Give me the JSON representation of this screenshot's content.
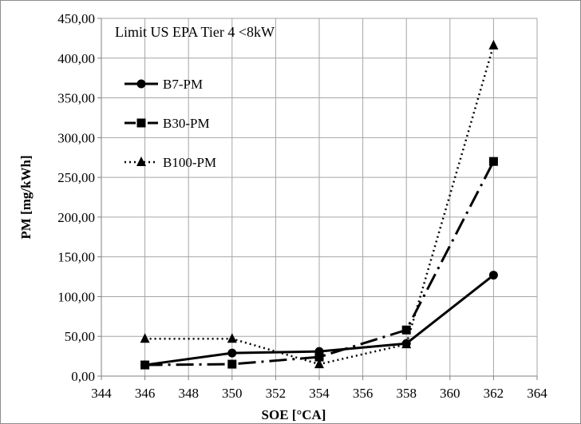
{
  "chart_data": {
    "type": "line",
    "annotation": "Limit US EPA Tier 4 <8kW",
    "xlabel": "SOE [°CA]",
    "ylabel": "PM [mg/kWh]",
    "xlim": [
      344,
      364
    ],
    "ylim": [
      0,
      450
    ],
    "x_ticks": [
      "344",
      "346",
      "348",
      "350",
      "352",
      "354",
      "356",
      "358",
      "360",
      "362",
      "364"
    ],
    "y_ticks": [
      "0,00",
      "50,00",
      "100,00",
      "150,00",
      "200,00",
      "250,00",
      "300,00",
      "350,00",
      "400,00",
      "450,00"
    ],
    "grid": true,
    "legend_position": "top-left",
    "x": [
      346,
      350,
      354,
      358,
      362
    ],
    "series": [
      {
        "name": "B7-PM",
        "marker": "circle",
        "line_style": "solid",
        "values": [
          14,
          29,
          31,
          41,
          127
        ]
      },
      {
        "name": "B30-PM",
        "marker": "square",
        "line_style": "dash-dot",
        "values": [
          14,
          15,
          24,
          58,
          270
        ]
      },
      {
        "name": "B100-PM",
        "marker": "triangle",
        "line_style": "dotted",
        "values": [
          47,
          47,
          15,
          40,
          416
        ]
      }
    ]
  }
}
